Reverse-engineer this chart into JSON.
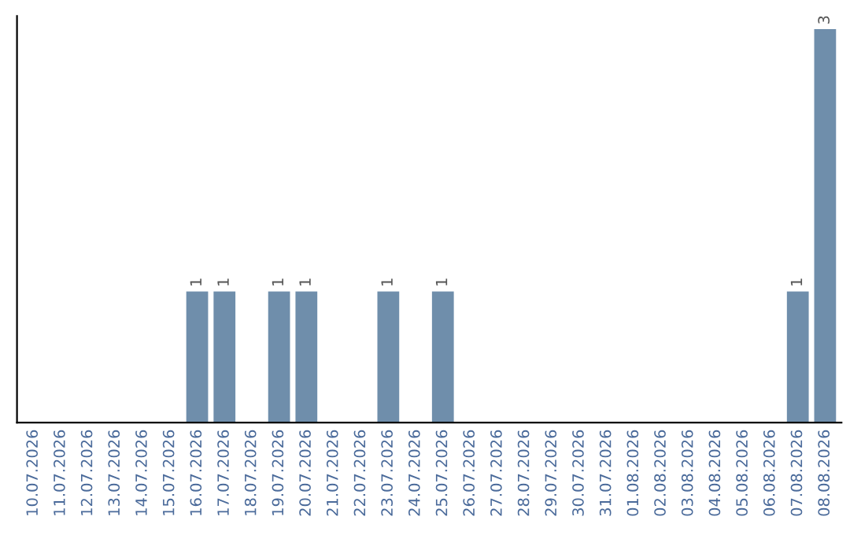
{
  "chart_data": {
    "type": "bar",
    "categories": [
      "10.07.2026",
      "11.07.2026",
      "12.07.2026",
      "13.07.2026",
      "14.07.2026",
      "15.07.2026",
      "16.07.2026",
      "17.07.2026",
      "18.07.2026",
      "19.07.2026",
      "20.07.2026",
      "21.07.2026",
      "22.07.2026",
      "23.07.2026",
      "24.07.2026",
      "25.07.2026",
      "26.07.2026",
      "27.07.2026",
      "28.07.2026",
      "29.07.2026",
      "30.07.2026",
      "31.07.2026",
      "01.08.2026",
      "02.08.2026",
      "03.08.2026",
      "04.08.2026",
      "05.08.2026",
      "06.08.2026",
      "07.08.2026",
      "08.08.2026"
    ],
    "values": [
      0,
      0,
      0,
      0,
      0,
      0,
      1,
      1,
      0,
      1,
      1,
      0,
      0,
      1,
      0,
      1,
      0,
      0,
      0,
      0,
      0,
      0,
      0,
      0,
      0,
      0,
      0,
      0,
      1,
      3
    ],
    "value_labels": [
      null,
      null,
      null,
      null,
      null,
      null,
      "1",
      "1",
      null,
      "1",
      "1",
      null,
      null,
      "1",
      null,
      "1",
      null,
      null,
      null,
      null,
      null,
      null,
      null,
      null,
      null,
      null,
      null,
      null,
      "1",
      "3"
    ],
    "color": "#6f8eab",
    "ylim": [
      0,
      3.1
    ],
    "tick_labels": "x",
    "grid": false,
    "legend": false
  }
}
